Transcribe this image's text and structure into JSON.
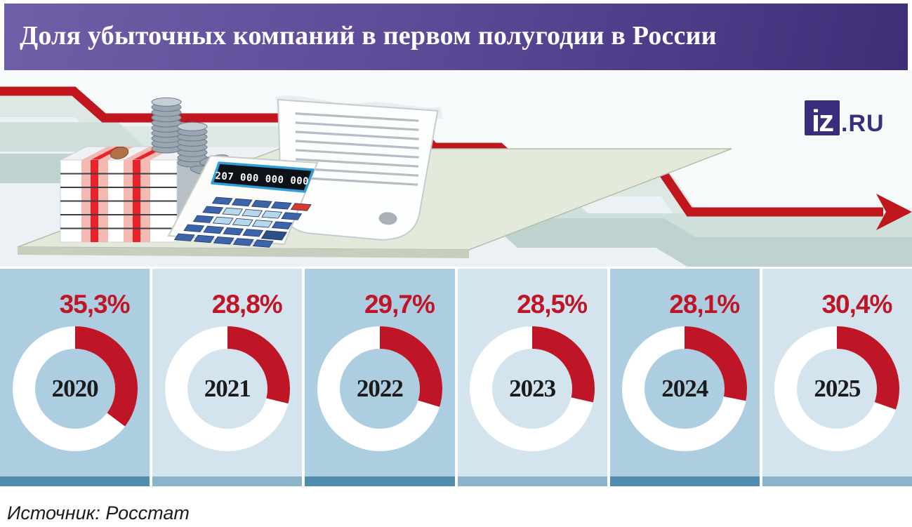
{
  "header": {
    "title": "Доля убыточных компаний в первом полугодии в России"
  },
  "logo": {
    "box": "iz",
    "suffix": ".RU"
  },
  "illustration": {
    "calculator_display": "207 000 000 000"
  },
  "chart_data": {
    "type": "donut",
    "title": "Доля убыточных компаний в первом полугодии в России",
    "unit": "%",
    "categories": [
      "2020",
      "2021",
      "2022",
      "2023",
      "2024",
      "2025"
    ],
    "values": [
      35.3,
      28.8,
      29.7,
      28.5,
      28.1,
      30.4
    ],
    "labels": [
      "35,3%",
      "28,8%",
      "29,7%",
      "28,5%",
      "28,1%",
      "30,4%"
    ],
    "arc_start": "top",
    "arc_direction": "clockwise",
    "colors": {
      "accent_red": "#bf1627",
      "trend_line_red": "#c0161d",
      "ring_white": "#ffffff",
      "card_bg_dark": "#adcde0",
      "card_bg_light": "#d4e4ee",
      "footer_dark": "#4f8cae",
      "footer_light": "#8ab4c8",
      "year_text": "#1b1b1b",
      "title_bg_left": "#6f5fa8",
      "title_bg_right": "#3e2e78",
      "logo_purple": "#3a2d7d"
    }
  },
  "source": {
    "label": "Источник: Росстат"
  }
}
